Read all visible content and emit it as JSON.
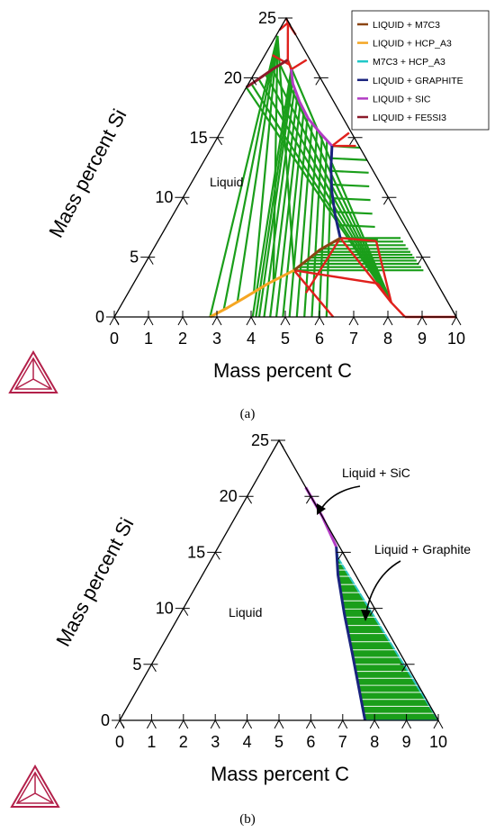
{
  "chart_data": [
    {
      "id": "a",
      "type": "ternary-isopleth",
      "caption": "(a)",
      "xlabel": "Mass percent C",
      "ylabel": "Mass percent Si",
      "xlim": [
        0,
        10
      ],
      "ylim": [
        0,
        25
      ],
      "x_ticks": [
        "0",
        "1",
        "2",
        "3",
        "4",
        "5",
        "6",
        "7",
        "8",
        "9",
        "10"
      ],
      "y_ticks": [
        "0",
        "5",
        "10",
        "15",
        "20",
        "25"
      ],
      "region_labels": [
        {
          "text": "Liquid",
          "x": 3.6,
          "y": 11.5
        }
      ],
      "legend_position": "top-right",
      "legend": [
        {
          "name": "LIQUID + M7C3",
          "color": "#8B4513"
        },
        {
          "name": "LIQUID + HCP_A3",
          "color": "#F5A623"
        },
        {
          "name": "M7C3 + HCP_A3",
          "color": "#1FC8C8"
        },
        {
          "name": "LIQUID + GRAPHITE",
          "color": "#1A237E"
        },
        {
          "name": "LIQUID + SIC",
          "color": "#B23BC4"
        },
        {
          "name": "LIQUID + FE5SI3",
          "color": "#8B1A2A"
        }
      ],
      "boundaries": [
        {
          "phase": "LIQUID + FE5SI3",
          "points": [
            [
              3.75,
              19.2
            ],
            [
              4.2,
              19.9
            ],
            [
              4.6,
              20.7
            ],
            [
              5.05,
              21.5
            ]
          ]
        },
        {
          "phase": "LIQUID + SIC",
          "points": [
            [
              5.15,
              20.7
            ],
            [
              5.2,
              19.5
            ],
            [
              5.4,
              18.0
            ],
            [
              5.65,
              16.6
            ],
            [
              6.0,
              15.4
            ],
            [
              6.35,
              14.3
            ]
          ]
        },
        {
          "phase": "LIQUID + GRAPHITE",
          "points": [
            [
              6.35,
              14.3
            ],
            [
              6.32,
              12.5
            ],
            [
              6.35,
              10.5
            ],
            [
              6.45,
              8.5
            ],
            [
              6.6,
              6.6
            ]
          ]
        },
        {
          "phase": "LIQUID + M7C3",
          "points": [
            [
              6.6,
              6.6
            ],
            [
              6.0,
              5.6
            ],
            [
              5.65,
              4.8
            ],
            [
              5.25,
              3.9
            ]
          ]
        },
        {
          "phase": "LIQUID + HCP_A3",
          "points": [
            [
              5.25,
              3.9
            ],
            [
              4.5,
              2.8
            ],
            [
              3.8,
              1.6
            ],
            [
              3.3,
              0.75
            ],
            [
              2.8,
              0
            ]
          ]
        }
      ],
      "red_lines": [
        [
          [
            4.75,
            25
          ],
          [
            5.05,
            24.6
          ]
        ],
        [
          [
            4.6,
            24.0
          ],
          [
            5.05,
            24.6
          ]
        ],
        [
          [
            5.05,
            24.6
          ],
          [
            5.6,
            23.6
          ]
        ],
        [
          [
            5.05,
            24.6
          ],
          [
            5.05,
            21.5
          ]
        ],
        [
          [
            5.05,
            21.5
          ],
          [
            5.15,
            20.7
          ]
        ],
        [
          [
            4.6,
            21.9
          ],
          [
            5.1,
            21.1
          ]
        ],
        [
          [
            5.15,
            20.7
          ],
          [
            5.6,
            21.5
          ]
        ],
        [
          [
            6.35,
            14.3
          ],
          [
            7.05,
            14.3
          ]
        ],
        [
          [
            6.35,
            14.3
          ],
          [
            6.85,
            15.4
          ]
        ],
        [
          [
            6.6,
            6.6
          ],
          [
            7.65,
            6.35
          ]
        ],
        [
          [
            6.6,
            6.6
          ],
          [
            5.6,
            2.0
          ]
        ],
        [
          [
            6.6,
            6.6
          ],
          [
            8.1,
            1.2
          ]
        ],
        [
          [
            5.25,
            3.9
          ],
          [
            6.4,
            0
          ]
        ],
        [
          [
            5.25,
            3.9
          ],
          [
            7.7,
            2.8
          ]
        ],
        [
          [
            7.65,
            6.35
          ],
          [
            8.1,
            1.2
          ]
        ],
        [
          [
            8.1,
            1.2
          ],
          [
            8.5,
            0
          ]
        ],
        [
          [
            8.5,
            0
          ],
          [
            10,
            0
          ]
        ],
        [
          [
            7.7,
            2.8
          ],
          [
            8.1,
            1.2
          ]
        ]
      ]
    },
    {
      "id": "b",
      "type": "ternary-isopleth",
      "caption": "(b)",
      "xlabel": "Mass percent C",
      "ylabel": "Mass percent Si",
      "xlim": [
        0,
        10
      ],
      "ylim": [
        0,
        25
      ],
      "x_ticks": [
        "0",
        "1",
        "2",
        "3",
        "4",
        "5",
        "6",
        "7",
        "8",
        "9",
        "10"
      ],
      "y_ticks": [
        "0",
        "5",
        "10",
        "15",
        "20",
        "25"
      ],
      "region_labels": [
        {
          "text": "Liquid",
          "x": 3.6,
          "y": 10.0
        }
      ],
      "annotations": [
        {
          "text": "Liquid + SiC",
          "x": 8.1,
          "y": 22.5
        },
        {
          "text": "Liquid + Graphite",
          "x": 9.0,
          "y": 15.2
        }
      ],
      "boundaries": [
        {
          "phase": "LIQUID + SIC",
          "points": [
            [
              6.0,
              20.8
            ],
            [
              6.45,
              18.2
            ],
            [
              6.8,
              15.5
            ]
          ]
        },
        {
          "phase": "LIQUID + GRAPHITE",
          "points": [
            [
              6.8,
              15.5
            ],
            [
              6.85,
              13.0
            ],
            [
              7.05,
              9.5
            ],
            [
              7.3,
              6.0
            ],
            [
              7.5,
              3.0
            ],
            [
              7.7,
              0
            ]
          ]
        }
      ]
    }
  ],
  "watermark": "Thermo-Calc logo"
}
